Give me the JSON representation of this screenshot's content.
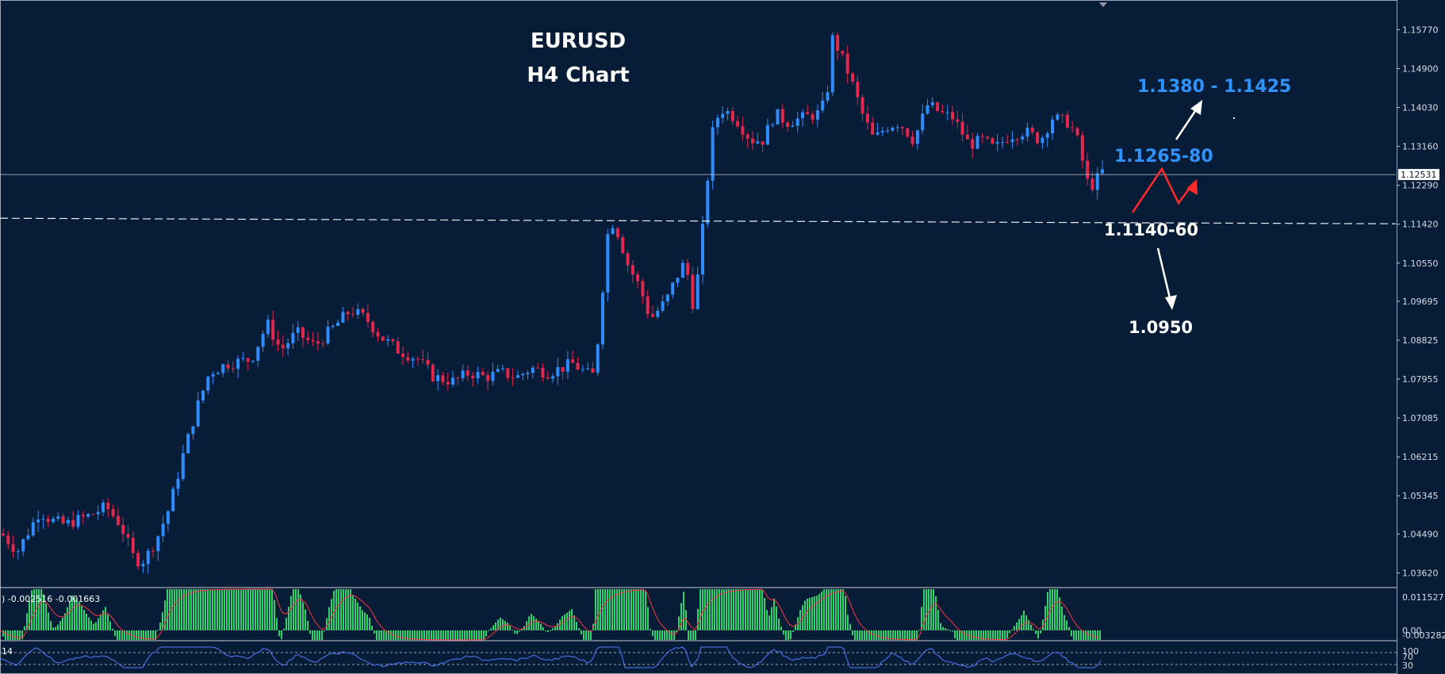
{
  "chart_data": {
    "type": "candlestick",
    "title": "EURUSD",
    "subtitle": "H4 Chart",
    "y_ticks": [
      "1.15770",
      "1.14900",
      "1.14030",
      "1.13160",
      "1.12290",
      "1.11420",
      "1.10550",
      "1.09695",
      "1.08825",
      "1.07955",
      "1.07085",
      "1.06215",
      "1.05345",
      "1.04490",
      "1.03620"
    ],
    "ylim": [
      1.033,
      1.164
    ],
    "current_price": "1.12531",
    "current_price_value": 1.12531,
    "support_level": 1.115,
    "keypoints": [
      [
        0,
        1.045
      ],
      [
        20,
        1.041
      ],
      [
        48,
        1.05
      ],
      [
        62,
        1.048
      ],
      [
        80,
        1.047
      ],
      [
        110,
        1.049
      ],
      [
        132,
        1.051
      ],
      [
        150,
        1.047
      ],
      [
        168,
        1.039
      ],
      [
        180,
        1.039
      ],
      [
        196,
        1.044
      ],
      [
        212,
        1.051
      ],
      [
        228,
        1.062
      ],
      [
        246,
        1.073
      ],
      [
        262,
        1.081
      ],
      [
        285,
        1.083
      ],
      [
        315,
        1.084
      ],
      [
        335,
        1.092
      ],
      [
        352,
        1.086
      ],
      [
        372,
        1.09
      ],
      [
        395,
        1.087
      ],
      [
        418,
        1.091
      ],
      [
        440,
        1.095
      ],
      [
        460,
        1.093
      ],
      [
        478,
        1.089
      ],
      [
        500,
        1.086
      ],
      [
        525,
        1.084
      ],
      [
        545,
        1.08
      ],
      [
        570,
        1.079
      ],
      [
        590,
        1.081
      ],
      [
        610,
        1.08
      ],
      [
        630,
        1.081
      ],
      [
        650,
        1.08
      ],
      [
        668,
        1.082
      ],
      [
        690,
        1.081
      ],
      [
        720,
        1.083
      ],
      [
        745,
        1.08
      ],
      [
        755,
        1.092
      ],
      [
        762,
        1.111
      ],
      [
        772,
        1.115
      ],
      [
        790,
        1.105
      ],
      [
        805,
        1.1
      ],
      [
        818,
        1.093
      ],
      [
        838,
        1.097
      ],
      [
        850,
        1.102
      ],
      [
        862,
        1.106
      ],
      [
        872,
        1.096
      ],
      [
        880,
        1.105
      ],
      [
        888,
        1.121
      ],
      [
        898,
        1.137
      ],
      [
        910,
        1.14
      ],
      [
        925,
        1.138
      ],
      [
        945,
        1.133
      ],
      [
        960,
        1.133
      ],
      [
        975,
        1.139
      ],
      [
        990,
        1.137
      ],
      [
        1010,
        1.138
      ],
      [
        1030,
        1.139
      ],
      [
        1040,
        1.142
      ],
      [
        1048,
        1.156
      ],
      [
        1056,
        1.153
      ],
      [
        1070,
        1.147
      ],
      [
        1085,
        1.139
      ],
      [
        1100,
        1.133
      ],
      [
        1115,
        1.136
      ],
      [
        1132,
        1.137
      ],
      [
        1150,
        1.133
      ],
      [
        1168,
        1.141
      ],
      [
        1185,
        1.139
      ],
      [
        1200,
        1.138
      ],
      [
        1220,
        1.132
      ],
      [
        1238,
        1.133
      ],
      [
        1252,
        1.131
      ],
      [
        1270,
        1.134
      ],
      [
        1290,
        1.135
      ],
      [
        1310,
        1.133
      ],
      [
        1325,
        1.138
      ],
      [
        1345,
        1.137
      ],
      [
        1355,
        1.134
      ],
      [
        1362,
        1.129
      ],
      [
        1370,
        1.123
      ],
      [
        1378,
        1.123
      ],
      [
        1386,
        1.126
      ]
    ],
    "annotations": [
      {
        "text": "1.1380 - 1.1425"
      },
      {
        "text": "1.1265-80"
      },
      {
        "text": "1.1140-60"
      },
      {
        "text": "1.0950"
      }
    ],
    "macd": {
      "label": ") -0.002516 -0.001663",
      "y_ticks": [
        "0.011527",
        "0.00",
        "-0.003282"
      ]
    },
    "oscillator": {
      "label": "14",
      "y_ticks": [
        "100",
        "70",
        "30"
      ]
    },
    "colors": {
      "background": "#071c36",
      "bull": "#2f8cff",
      "bear": "#e3284f",
      "hist": "#2fd36b",
      "signal": "#ff3344",
      "osc": "#4d7cff",
      "grid": "#c8ccd4"
    }
  }
}
